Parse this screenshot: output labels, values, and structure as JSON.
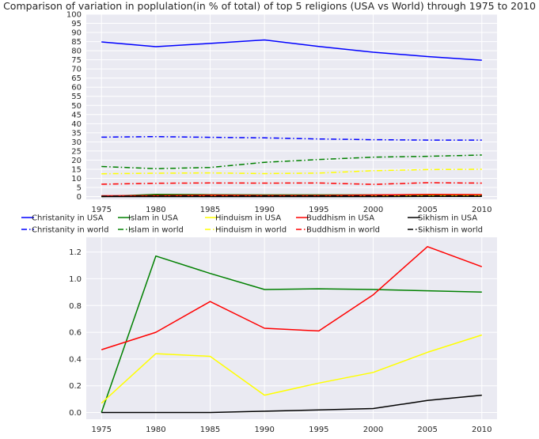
{
  "title": "Comparison of variation in poplulation(in % of total) of top 5 religions (USA vs World) through 1975 to 2010",
  "chart_data": [
    {
      "type": "line",
      "x": [
        1975,
        1980,
        1985,
        1990,
        1995,
        2000,
        2005,
        2010
      ],
      "ylim": [
        -1.5,
        100
      ],
      "yticks": [
        0,
        5,
        10,
        15,
        20,
        25,
        30,
        35,
        40,
        45,
        50,
        55,
        60,
        65,
        70,
        75,
        80,
        85,
        90,
        95,
        100
      ],
      "grid": true,
      "legend": {
        "placement": "below",
        "entries": [
          "Christanity in USA",
          "Islam in USA",
          "Hinduism in USA",
          "Buddhism in USA",
          "Sikhism in USA",
          "Christanity in world",
          "Islam in world",
          "Hinduism in world",
          "Buddhism in world",
          "Sikhism in world"
        ]
      },
      "series": [
        {
          "name": "Christanity in USA",
          "color": "#0000ff",
          "dash": "solid",
          "values": [
            84.8,
            82.2,
            84.0,
            85.9,
            82.3,
            79.2,
            76.8,
            74.8
          ]
        },
        {
          "name": "Christanity in world",
          "color": "#0000ff",
          "dash": "dashdot",
          "values": [
            32.6,
            32.9,
            32.5,
            32.2,
            31.6,
            31.2,
            31.0,
            31.0
          ]
        },
        {
          "name": "Islam in USA",
          "color": "#008000",
          "dash": "solid",
          "values": [
            0.0,
            1.17,
            1.04,
            0.92,
            0.925,
            0.92,
            0.91,
            0.9
          ]
        },
        {
          "name": "Islam in world",
          "color": "#008000",
          "dash": "dashdot",
          "values": [
            16.5,
            15.3,
            16.0,
            18.8,
            20.3,
            21.6,
            22.1,
            22.8
          ]
        },
        {
          "name": "Hinduism in USA",
          "color": "#ffff00",
          "dash": "solid",
          "values": [
            0.07,
            0.44,
            0.42,
            0.13,
            0.22,
            0.3,
            0.45,
            0.58
          ]
        },
        {
          "name": "Hinduism in world",
          "color": "#ffff00",
          "dash": "dashdot",
          "values": [
            12.5,
            12.8,
            13.0,
            12.6,
            12.9,
            14.2,
            14.8,
            15.0
          ]
        },
        {
          "name": "Buddhism in USA",
          "color": "#ff0000",
          "dash": "solid",
          "values": [
            0.47,
            0.6,
            0.83,
            0.63,
            0.61,
            0.88,
            1.24,
            1.09
          ]
        },
        {
          "name": "Buddhism in world",
          "color": "#ff0000",
          "dash": "dashdot",
          "values": [
            6.8,
            7.3,
            7.5,
            7.4,
            7.5,
            6.7,
            7.6,
            7.4
          ]
        },
        {
          "name": "Sikhism in USA",
          "color": "#000000",
          "dash": "solid",
          "values": [
            0.0,
            0.0,
            0.0,
            0.01,
            0.02,
            0.03,
            0.09,
            0.13
          ]
        },
        {
          "name": "Sikhism in world",
          "color": "#000000",
          "dash": "dashdot",
          "values": [
            0.2,
            0.3,
            0.35,
            0.35,
            0.35,
            0.35,
            0.35,
            0.4
          ]
        }
      ]
    },
    {
      "type": "line",
      "x": [
        1975,
        1980,
        1985,
        1990,
        1995,
        2000,
        2005,
        2010
      ],
      "ylim": [
        -0.05,
        1.31
      ],
      "yticks": [
        0.0,
        0.2,
        0.4,
        0.6,
        0.8,
        1.0,
        1.2
      ],
      "grid": true,
      "series": [
        {
          "color": "#008000",
          "dash": "solid",
          "values": [
            0.0,
            1.17,
            1.04,
            0.92,
            0.925,
            0.92,
            0.91,
            0.9
          ]
        },
        {
          "color": "#ffff00",
          "dash": "solid",
          "values": [
            0.07,
            0.44,
            0.42,
            0.13,
            0.22,
            0.3,
            0.45,
            0.58
          ]
        },
        {
          "color": "#ff0000",
          "dash": "solid",
          "values": [
            0.47,
            0.6,
            0.83,
            0.63,
            0.61,
            0.88,
            1.24,
            1.09
          ]
        },
        {
          "color": "#000000",
          "dash": "solid",
          "values": [
            0.0,
            0.0,
            0.0,
            0.01,
            0.02,
            0.03,
            0.09,
            0.13
          ]
        }
      ]
    }
  ]
}
